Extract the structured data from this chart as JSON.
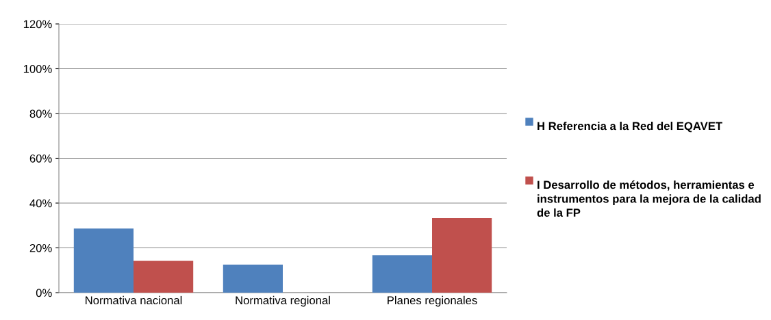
{
  "chart_data": {
    "type": "bar",
    "categories": [
      "Normativa nacional",
      "Normativa regional",
      "Planes regionales"
    ],
    "series": [
      {
        "name": "H Referencia a la Red del EQAVET",
        "color": "#4f81bd",
        "values": [
          28.6,
          12.5,
          16.7
        ]
      },
      {
        "name": "I Desarrollo de métodos, herramientas e instrumentos para la mejora de la calidad de la FP",
        "color": "#c0504d",
        "values": [
          14.2,
          0,
          33.3
        ]
      }
    ],
    "ylim": [
      0,
      120
    ],
    "yticks": [
      {
        "value": 0,
        "label": "0%"
      },
      {
        "value": 20,
        "label": "20%"
      },
      {
        "value": 40,
        "label": "40%"
      },
      {
        "value": 60,
        "label": "60%"
      },
      {
        "value": 80,
        "label": "80%"
      },
      {
        "value": 100,
        "label": "100%"
      },
      {
        "value": 120,
        "label": "120%"
      }
    ],
    "grid": "y",
    "legend": "right"
  }
}
